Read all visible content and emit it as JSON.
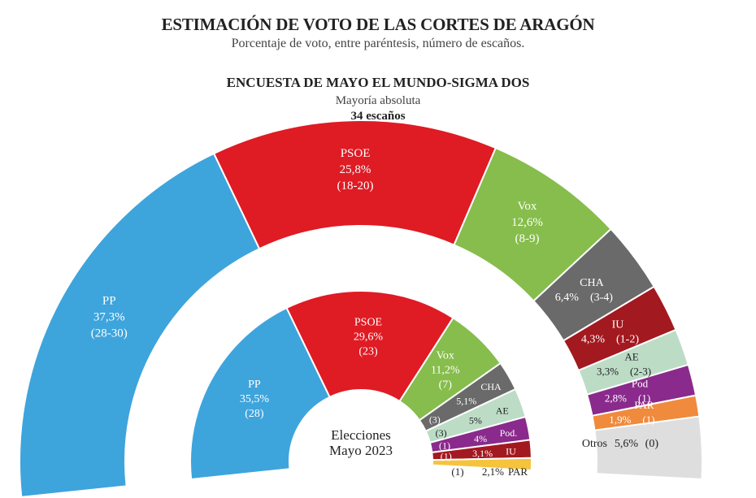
{
  "header": {
    "title": "ESTIMACIÓN DE VOTO DE LAS CORTES DE ARAGÓN",
    "subtitle": "Porcentaje de voto, entre paréntesis, número de escaños.",
    "survey": "ENCUESTA DE MAYO EL MUNDO-SIGMA DOS",
    "majority_label": "Mayoría absoluta",
    "majority_seats": "34 escaños"
  },
  "chart_data": [
    {
      "type": "donut-semicircle",
      "name": "ENCUESTA DE MAYO EL MUNDO-SIGMA DOS",
      "ring": "outer",
      "slices": [
        {
          "party": "PP",
          "pct": "37,3%",
          "seats": "(28-30)",
          "value": 37.3,
          "color": "#3ea4dc",
          "text_color": "#ffffff"
        },
        {
          "party": "PSOE",
          "pct": "25,8%",
          "seats": "(18-20)",
          "value": 25.8,
          "color": "#df1b24",
          "text_color": "#ffffff"
        },
        {
          "party": "Vox",
          "pct": "12,6%",
          "seats": "(8-9)",
          "value": 12.6,
          "color": "#86bd4c",
          "text_color": "#ffffff"
        },
        {
          "party": "CHA",
          "pct": "6,4%",
          "seats": "(3-4)",
          "value": 6.4,
          "color": "#6a6a6a",
          "text_color": "#ffffff"
        },
        {
          "party": "IU",
          "pct": "4,3%",
          "seats": "(1-2)",
          "value": 4.3,
          "color": "#a31920",
          "text_color": "#ffffff"
        },
        {
          "party": "AE",
          "pct": "3,3%",
          "seats": "(2-3)",
          "value": 3.3,
          "color": "#bcdcc6",
          "text_color": "#222222"
        },
        {
          "party": "Pod",
          "pct": "2,8%",
          "seats": "(1)",
          "value": 2.8,
          "color": "#8a2a8c",
          "text_color": "#ffffff"
        },
        {
          "party": "PAR",
          "pct": "1,9%",
          "seats": "(1)",
          "value": 1.9,
          "color": "#f08a3c",
          "text_color": "#ffffff"
        },
        {
          "party": "Otros",
          "pct": "5,6%",
          "seats": "(0)",
          "value": 5.6,
          "color": "#dedede",
          "text_color": "#222222"
        }
      ]
    },
    {
      "type": "donut-semicircle",
      "name": "Elecciones Mayo 2023",
      "ring": "inner",
      "center_label_1": "Elecciones",
      "center_label_2": "Mayo 2023",
      "slices": [
        {
          "party": "PP",
          "pct": "35,5%",
          "seats": "(28)",
          "value": 35.5,
          "color": "#3ea4dc"
        },
        {
          "party": "PSOE",
          "pct": "29,6%",
          "seats": "(23)",
          "value": 29.6,
          "color": "#df1b24"
        },
        {
          "party": "Vox",
          "pct": "11,2%",
          "seats": "(7)",
          "value": 11.2,
          "color": "#86bd4c"
        },
        {
          "party": "CHA",
          "pct": "5,1%",
          "seats": "(3)",
          "value": 5.1,
          "color": "#6a6a6a"
        },
        {
          "party": "AE",
          "pct": "5%",
          "seats": "(3)",
          "value": 5.0,
          "color": "#bcdcc6"
        },
        {
          "party": "Pod.",
          "pct": "4%",
          "seats": "(1)",
          "value": 4.0,
          "color": "#8a2a8c"
        },
        {
          "party": "IU",
          "pct": "3,1%",
          "seats": "(1)",
          "value": 3.1,
          "color": "#a31920"
        },
        {
          "party": "PAR",
          "pct": "2,1%",
          "seats": "(1)",
          "value": 2.1,
          "color": "#f5c33c"
        }
      ]
    }
  ]
}
